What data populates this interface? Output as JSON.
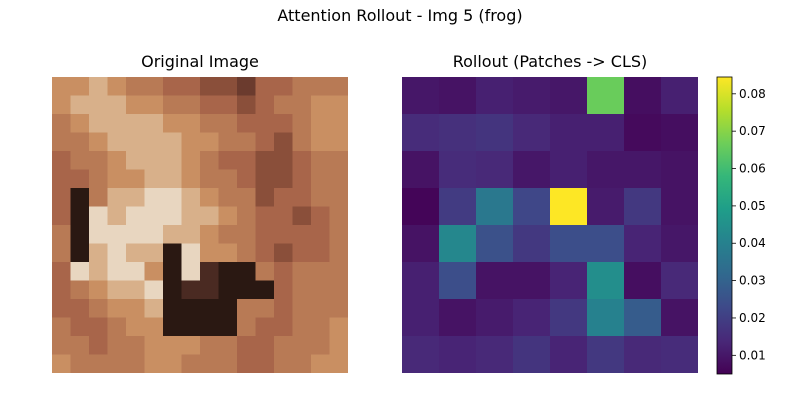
{
  "figure": {
    "suptitle": "Attention Rollout - Img 5 (frog)",
    "left_title": "Original Image",
    "right_title": "Rollout (Patches -> CLS)"
  },
  "colors": {
    "viridis": [
      "#440154",
      "#482878",
      "#3e4989",
      "#31688e",
      "#26828e",
      "#1f9e89",
      "#35b779",
      "#6ece58",
      "#b5de2b",
      "#fde725"
    ],
    "image_palette": [
      "#4a2a22",
      "#6b3b2e",
      "#8a4f3a",
      "#a8654a",
      "#b87a55",
      "#c98f62",
      "#d8b08a",
      "#e8d6c0",
      "#2a1812"
    ]
  },
  "chart_data": {
    "type": "heatmap",
    "title": "Rollout (Patches -> CLS)",
    "colormap": "viridis",
    "vmin": 0.005,
    "vmax": 0.0845,
    "rows": 8,
    "cols": 8,
    "values": [
      [
        0.01,
        0.009,
        0.012,
        0.011,
        0.01,
        0.066,
        0.008,
        0.012
      ],
      [
        0.015,
        0.016,
        0.017,
        0.014,
        0.012,
        0.012,
        0.007,
        0.008
      ],
      [
        0.009,
        0.015,
        0.014,
        0.01,
        0.012,
        0.01,
        0.01,
        0.009
      ],
      [
        0.006,
        0.019,
        0.037,
        0.022,
        0.085,
        0.011,
        0.018,
        0.009
      ],
      [
        0.009,
        0.042,
        0.025,
        0.018,
        0.024,
        0.024,
        0.013,
        0.01
      ],
      [
        0.012,
        0.024,
        0.009,
        0.009,
        0.013,
        0.044,
        0.008,
        0.014
      ],
      [
        0.012,
        0.009,
        0.011,
        0.013,
        0.018,
        0.04,
        0.028,
        0.009
      ],
      [
        0.014,
        0.013,
        0.014,
        0.017,
        0.013,
        0.018,
        0.014,
        0.015
      ]
    ],
    "colorbar": {
      "ticks": [
        0.01,
        0.02,
        0.03,
        0.04,
        0.05,
        0.06,
        0.07,
        0.08
      ],
      "tick_labels": [
        "0.01",
        "0.02",
        "0.03",
        "0.04",
        "0.05",
        "0.06",
        "0.07",
        "0.08"
      ]
    }
  },
  "image": {
    "description_tag": "frog",
    "grid": 16,
    "pixels": [
      "5565443322133444",
      "5666554433234455",
      "4566665544333455",
      "4456666554432455",
      "3445666543322344",
      "3345566544322344",
      "3846677654423344",
      "3876777665433234",
      "4877776654433334",
      "4867668755432334",
      "3767758708843444",
      "3456678008883444",
      "3345568888443444",
      "4334558888433445",
      "4434455544334445",
      "5444455444334455"
    ]
  }
}
